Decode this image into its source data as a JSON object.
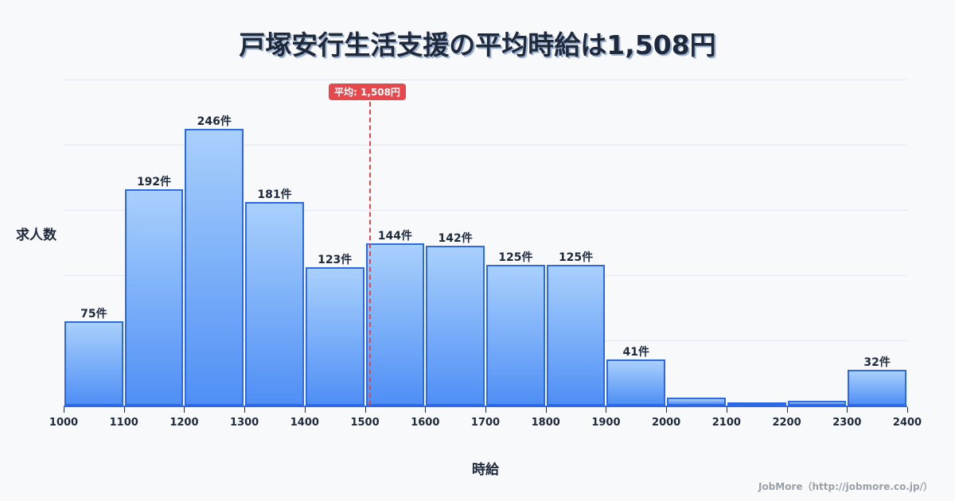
{
  "title": "戸塚安行生活支援の平均時給は1,508円",
  "average_badge": "平均: 1,508円",
  "y_axis_label": "求人数",
  "x_axis_label": "時給",
  "credit": "JobMore（http://jobmore.co.jp/）",
  "colors": {
    "bar_border": "#2d68e6",
    "bar_top": "#a9d0fc",
    "bar_bottom": "#4f8ff5",
    "average_line": "#e5484d"
  },
  "chart_data": {
    "type": "bar",
    "title": "戸塚安行生活支援の平均時給は1,508円",
    "xlabel": "時給",
    "ylabel": "求人数",
    "categories": [
      "1000-1100",
      "1100-1200",
      "1200-1300",
      "1300-1400",
      "1400-1500",
      "1500-1600",
      "1600-1700",
      "1700-1800",
      "1800-1900",
      "1900-2000",
      "2000-2100",
      "2100-2200",
      "2200-2300",
      "2300-2400"
    ],
    "values": [
      75,
      192,
      246,
      181,
      123,
      144,
      142,
      125,
      125,
      41,
      7,
      2,
      4,
      32
    ],
    "labels": [
      "75件",
      "192件",
      "246件",
      "181件",
      "123件",
      "144件",
      "142件",
      "125件",
      "125件",
      "41件",
      "",
      "",
      "",
      "32件"
    ],
    "x_ticks": [
      "1000",
      "1100",
      "1200",
      "1300",
      "1400",
      "1500",
      "1600",
      "1700",
      "1800",
      "1900",
      "2000",
      "2100",
      "2200",
      "2300",
      "2400"
    ],
    "average": 1508,
    "average_label": "平均: 1,508円",
    "ylim": [
      0,
      290
    ],
    "grid": true
  }
}
